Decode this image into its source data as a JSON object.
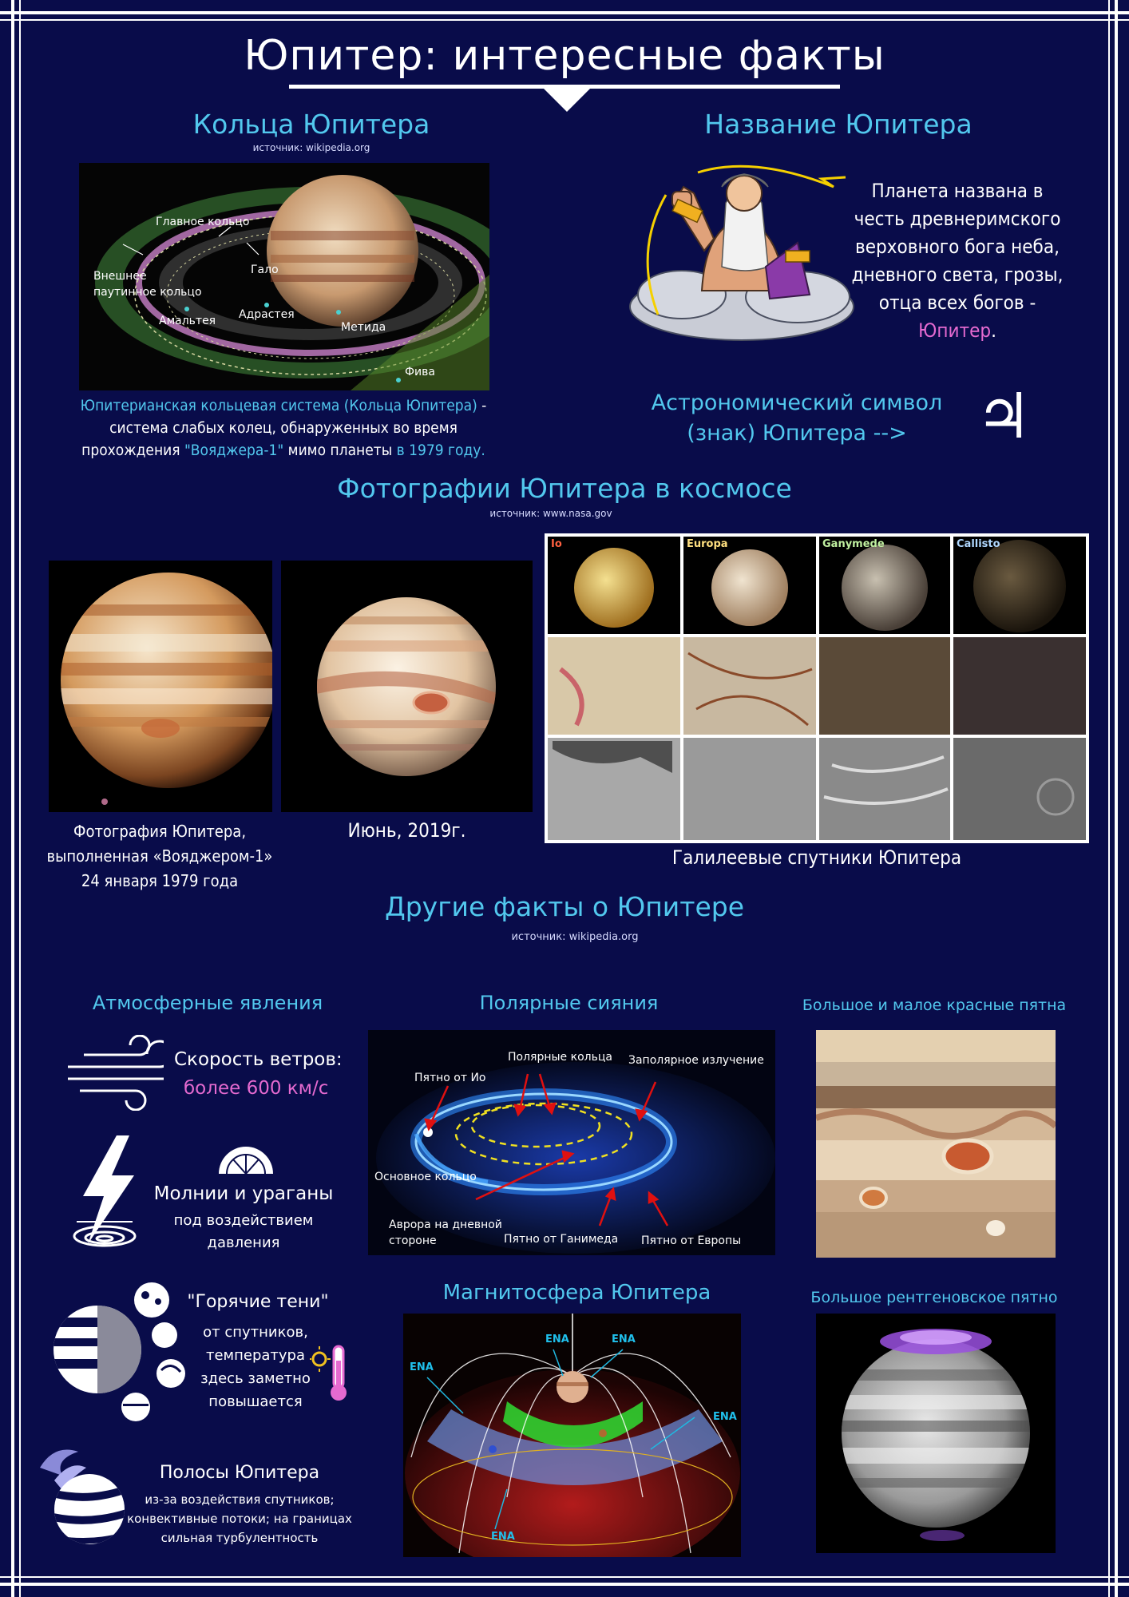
{
  "page": {
    "title": "Юпитер: интересные факты",
    "colors": {
      "background": "#090c4a",
      "accent_cyan": "#52c8ee",
      "accent_pink": "#e56ad0",
      "text": "#ffffff"
    }
  },
  "rings": {
    "heading": "Кольца Юпитера",
    "source": "источник: wikipedia.org",
    "diagram_labels": {
      "main_ring": "Главное кольцо",
      "halo": "Гало",
      "outer_ring_1": "Внешнее",
      "outer_ring_2": "паутинное кольцо",
      "amalthea": "Амальтея",
      "adrastea": "Адрастея",
      "metis": "Метида",
      "thebe": "Фива"
    },
    "caption": {
      "line1_hl": "Юпитерианская кольцевая система (Кольца Юпитера)",
      "line1_rest": " -",
      "line2": "система слабых колец, обнаруженных во время",
      "line3_pre": "прохождения ",
      "line3_hl1": "\"Вояджера-1\"",
      "line3_mid": " мимо планеты ",
      "line3_hl2": "в 1979 году."
    }
  },
  "name": {
    "heading": "Название Юпитера",
    "text_lines": [
      "Планета названа в",
      "честь древнеримского",
      "верховного бога неба,",
      "дневного света, грозы,",
      "отца всех богов -"
    ],
    "highlight": "Юпитер",
    "period": ".",
    "illustration_icon": "zeus-illustration"
  },
  "symbol": {
    "line1": "Астрономический символ",
    "line2": "(знак) Юпитера -->",
    "glyph": "♃"
  },
  "photos": {
    "heading": "Фотографии Юпитера в космосе",
    "source": "источник: www.nasa.gov",
    "voyager_caption": [
      "Фотография Юпитера,",
      "выполненная «Вояджером-1»",
      "24 января 1979 года"
    ],
    "june_caption": "Июнь, 2019г.",
    "moons_caption": "Галилеевые спутники Юпитера",
    "moons": [
      "Io",
      "Europa",
      "Ganymede",
      "Callisto"
    ]
  },
  "other": {
    "heading": "Другие факты о Юпитере",
    "source": "источник: wikipedia.org"
  },
  "atmosphere": {
    "heading": "Атмосферные явления",
    "wind_label": "Скорость ветров:",
    "wind_value": "более 600 км/с",
    "storm_title": "Молнии и ураганы",
    "storm_sub1": "под воздействием",
    "storm_sub2": "давления",
    "shadow_title": "\"Горячие тени\"",
    "shadow_lines": [
      "от спутников,",
      "температура",
      "здесь заметно",
      "повышается"
    ],
    "bands_title": "Полосы Юпитера",
    "bands_lines": [
      "из-за воздействия спутников;",
      "конвективные потоки; на границах",
      "сильная турбулентность"
    ]
  },
  "aurora": {
    "heading": "Полярные сияния",
    "labels": {
      "polar_rings": "Полярные кольца",
      "subpolar": "Заполярное излучение",
      "io_spot": "Пятно от Ио",
      "main_ring": "Основное кольцо",
      "day_aurora_1": "Аврора на дневной",
      "day_aurora_2": "стороне",
      "ganymede_spot": "Пятно от Ганимеда",
      "europa_spot": "Пятно от Европы"
    }
  },
  "red_spots": {
    "heading": "Большое и малое красные пятна"
  },
  "magnetosphere": {
    "heading": "Магнитосфера Юпитера",
    "ena": "ENA"
  },
  "xray": {
    "heading": "Большое рентгеновское пятно"
  }
}
